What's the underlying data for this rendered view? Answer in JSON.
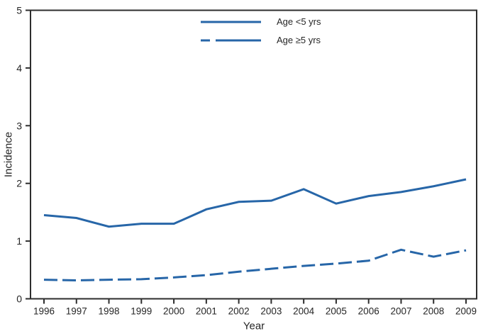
{
  "figure": {
    "y_axis_label": "Incidence",
    "x_axis_label": "Year"
  },
  "legend": [
    {
      "label": "Age <5 yrs",
      "style": "solid"
    },
    {
      "label": "Age ≥5 yrs",
      "style": "dashed"
    }
  ],
  "colors": {
    "line": "#2766a8",
    "axis": "#2d2d2d",
    "text": "#262626"
  },
  "chart_data": {
    "type": "line",
    "title": "",
    "xlabel": "Year",
    "ylabel": "Incidence",
    "x": [
      1996,
      1997,
      1998,
      1999,
      2000,
      2001,
      2002,
      2003,
      2004,
      2005,
      2006,
      2007,
      2008,
      2009
    ],
    "series": [
      {
        "name": "Age <5 yrs",
        "style": "solid",
        "values": [
          1.45,
          1.4,
          1.25,
          1.3,
          1.3,
          1.55,
          1.68,
          1.7,
          1.9,
          1.65,
          1.78,
          1.85,
          1.95,
          2.07
        ]
      },
      {
        "name": "Age ≥5 yrs",
        "style": "dashed",
        "values": [
          0.33,
          0.32,
          0.33,
          0.34,
          0.37,
          0.41,
          0.47,
          0.52,
          0.57,
          0.61,
          0.66,
          0.85,
          0.73,
          0.84
        ]
      }
    ],
    "ylim": [
      0,
      5
    ],
    "yticks": [
      0,
      1,
      2,
      3,
      4,
      5
    ],
    "grid": false,
    "legend_position": "top-center",
    "frame": "full-box"
  }
}
